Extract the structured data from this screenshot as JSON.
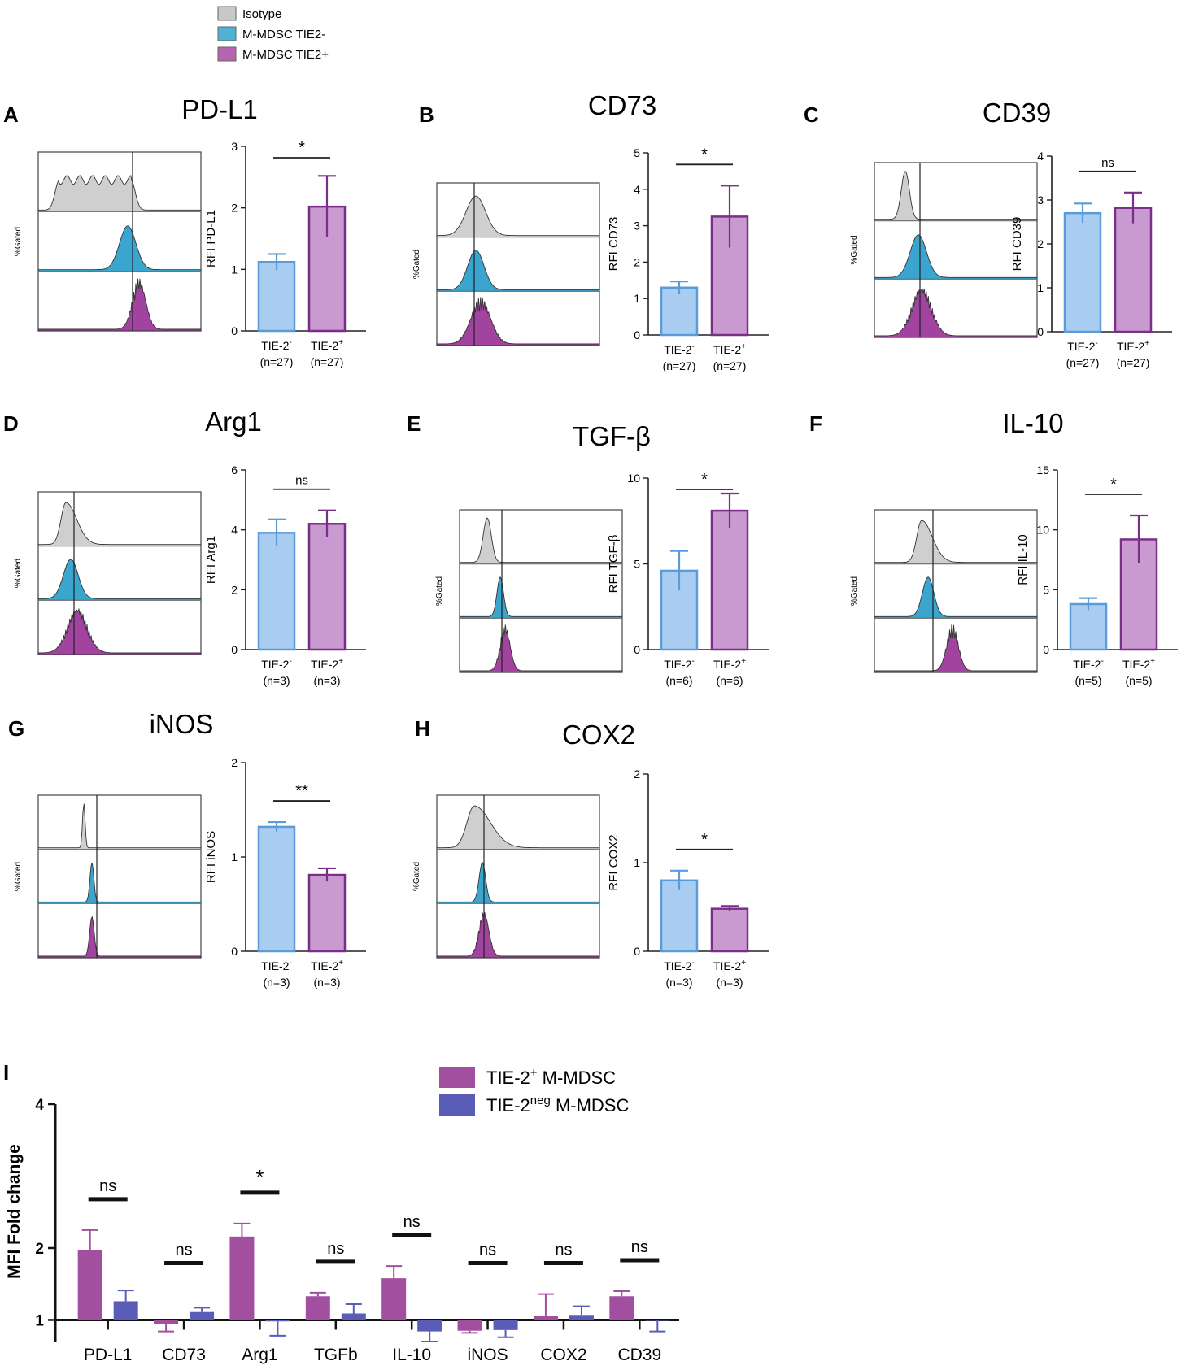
{
  "legend_top": [
    {
      "label": "Isotype",
      "color": "#c8c8c8"
    },
    {
      "label": "M-MDSC TIE2-",
      "color": "#4fb3d4"
    },
    {
      "label": "M-MDSC TIE2+",
      "color": "#b565b0"
    }
  ],
  "histogram_y_label": "%Gated",
  "colors": {
    "tie2neg_fill": "#a9cdf0",
    "tie2neg_line": "#5b9bd8",
    "tie2pos_fill": "#c99ad0",
    "tie2pos_line": "#7a2e89",
    "iso_fill": "#cfcfcf",
    "blue_fill": "#3aa6d0",
    "purple_fill": "#a2449f",
    "i_pos": "#a34f9f",
    "i_neg": "#5a5db8"
  },
  "chart_data": [
    {
      "type": "bar",
      "letter": "A",
      "title": "PD-L1",
      "ylabel": "RFI PD-L1",
      "ylim": [
        0,
        3
      ],
      "yticks": [
        0,
        1,
        2,
        3
      ],
      "categories": [
        {
          "name": "TIE-2",
          "sup": "-",
          "n": "(n=27)"
        },
        {
          "name": "TIE-2",
          "sup": "+",
          "n": "(n=27)"
        }
      ],
      "values": [
        1.12,
        2.02
      ],
      "errors": [
        0.13,
        0.5
      ],
      "significance": "*"
    },
    {
      "type": "bar",
      "letter": "B",
      "title": "CD73",
      "ylabel": "RFI CD73",
      "ylim": [
        0,
        5
      ],
      "yticks": [
        0,
        1,
        2,
        3,
        4,
        5
      ],
      "categories": [
        {
          "name": "TIE-2",
          "sup": "-",
          "n": "(n=27)"
        },
        {
          "name": "TIE-2",
          "sup": "+",
          "n": "(n=27)"
        }
      ],
      "values": [
        1.3,
        3.25
      ],
      "errors": [
        0.17,
        0.85
      ],
      "significance": "*"
    },
    {
      "type": "bar",
      "letter": "C",
      "title": "CD39",
      "ylabel": "RFI CD39",
      "ylim": [
        0,
        4
      ],
      "yticks": [
        0,
        1,
        2,
        3,
        4
      ],
      "categories": [
        {
          "name": "TIE-2",
          "sup": "-",
          "n": "(n=27)"
        },
        {
          "name": "TIE-2",
          "sup": "+",
          "n": "(n=27)"
        }
      ],
      "values": [
        2.7,
        2.82
      ],
      "errors": [
        0.22,
        0.35
      ],
      "significance": "ns"
    },
    {
      "type": "bar",
      "letter": "D",
      "title": "Arg1",
      "ylabel": "RFI Arg1",
      "ylim": [
        0,
        6
      ],
      "yticks": [
        0,
        2,
        4,
        6
      ],
      "categories": [
        {
          "name": "TIE-2",
          "sup": "-",
          "n": "(n=3)"
        },
        {
          "name": "TIE-2",
          "sup": "+",
          "n": "(n=3)"
        }
      ],
      "values": [
        3.9,
        4.2
      ],
      "errors": [
        0.45,
        0.45
      ],
      "significance": "ns"
    },
    {
      "type": "bar",
      "letter": "E",
      "title": "TGF-β",
      "ylabel": "RFI TGF-β",
      "ylim": [
        0,
        10
      ],
      "yticks": [
        0,
        5,
        10
      ],
      "categories": [
        {
          "name": "TIE-2",
          "sup": "-",
          "n": "(n=6)"
        },
        {
          "name": "TIE-2",
          "sup": "+",
          "n": "(n=6)"
        }
      ],
      "values": [
        4.6,
        8.1
      ],
      "errors": [
        1.15,
        1.0
      ],
      "significance": "*"
    },
    {
      "type": "bar",
      "letter": "F",
      "title": "IL-10",
      "ylabel": "RFI IL-10",
      "ylim": [
        0,
        15
      ],
      "yticks": [
        0,
        5,
        10,
        15
      ],
      "categories": [
        {
          "name": "TIE-2",
          "sup": "-",
          "n": "(n=5)"
        },
        {
          "name": "TIE-2",
          "sup": "+",
          "n": "(n=5)"
        }
      ],
      "values": [
        3.8,
        9.2
      ],
      "errors": [
        0.5,
        2.0
      ],
      "significance": "*"
    },
    {
      "type": "bar",
      "letter": "G",
      "title": "iNOS",
      "ylabel": "RFI iNOS",
      "ylim": [
        0,
        2
      ],
      "yticks": [
        0,
        1,
        2
      ],
      "categories": [
        {
          "name": "TIE-2",
          "sup": "-",
          "n": "(n=3)"
        },
        {
          "name": "TIE-2",
          "sup": "+",
          "n": "(n=3)"
        }
      ],
      "values": [
        1.32,
        0.81
      ],
      "errors": [
        0.05,
        0.07
      ],
      "significance": "**"
    },
    {
      "type": "bar",
      "letter": "H",
      "title": "COX2",
      "ylabel": "RFI COX2",
      "ylim": [
        0,
        2
      ],
      "yticks": [
        0,
        1,
        2
      ],
      "categories": [
        {
          "name": "TIE-2",
          "sup": "-",
          "n": "(n=3)"
        },
        {
          "name": "TIE-2",
          "sup": "+",
          "n": "(n=3)"
        }
      ],
      "values": [
        0.8,
        0.48
      ],
      "errors": [
        0.11,
        0.03
      ],
      "significance": "*"
    },
    {
      "type": "bar",
      "letter": "I",
      "ylabel": "MFI Fold change",
      "ylim": [
        0.7,
        4
      ],
      "yticks": [
        1,
        2,
        4
      ],
      "categories": [
        "PD-L1",
        "CD73",
        "Arg1",
        "TGFb",
        "IL-10",
        "iNOS",
        "COX2",
        "CD39"
      ],
      "legend": [
        {
          "label": "TIE-2",
          "sup": "+",
          "suffix": " M-MDSC"
        },
        {
          "label": "TIE-2",
          "sup": "neg",
          "suffix": " M-MDSC"
        }
      ],
      "series": [
        {
          "name": "TIE-2+ M-MDSC",
          "values": [
            1.97,
            0.94,
            2.16,
            1.33,
            1.58,
            0.85,
            1.06,
            1.33
          ],
          "errors": [
            0.28,
            0.1,
            0.18,
            0.05,
            0.17,
            0.03,
            0.3,
            0.07
          ]
        },
        {
          "name": "TIE-2neg M-MDSC",
          "values": [
            1.26,
            1.11,
            0.98,
            1.09,
            0.84,
            0.86,
            1.07,
            0.99
          ],
          "errors": [
            0.15,
            0.06,
            0.2,
            0.13,
            0.14,
            0.1,
            0.12,
            0.15
          ]
        }
      ],
      "significance": [
        "ns",
        "ns",
        "*",
        "ns",
        "ns",
        "ns",
        "ns",
        "ns"
      ]
    }
  ]
}
